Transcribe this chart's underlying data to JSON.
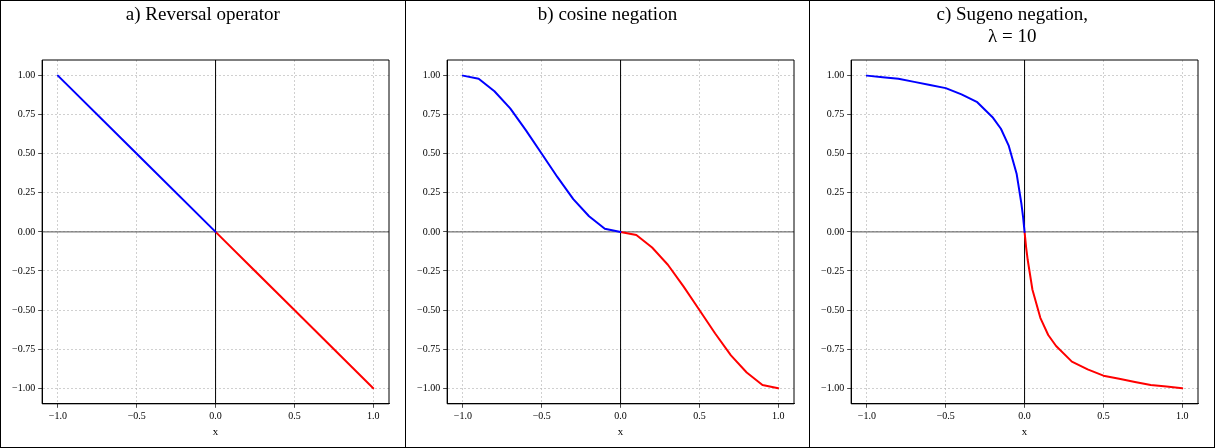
{
  "chart_data": [
    {
      "type": "line",
      "title": "a) Reversal operator",
      "xlabel": "x",
      "xlim": [
        -1.1,
        1.1
      ],
      "ylim": [
        -1.1,
        1.1
      ],
      "xticks": [
        {
          "value": -1,
          "label": "−1.0"
        },
        {
          "value": -0.5,
          "label": "−0.5"
        },
        {
          "value": 0,
          "label": "0.0"
        },
        {
          "value": 0.5,
          "label": "0.5"
        },
        {
          "value": 1,
          "label": "1.0"
        }
      ],
      "yticks": [
        {
          "value": -1,
          "label": "−1.00"
        },
        {
          "value": -0.75,
          "label": "−0.75"
        },
        {
          "value": -0.5,
          "label": "−0.50"
        },
        {
          "value": -0.25,
          "label": "−0.25"
        },
        {
          "value": 0,
          "label": "0.00"
        },
        {
          "value": 0.25,
          "label": "0.25"
        },
        {
          "value": 0.5,
          "label": "0.50"
        },
        {
          "value": 0.75,
          "label": "0.75"
        },
        {
          "value": 1,
          "label": "1.00"
        }
      ],
      "grid": true,
      "legend": false,
      "marker": "none",
      "line_style": "solid",
      "ref_lines": [
        {
          "axis": "x",
          "value": 0,
          "color": "#000000"
        },
        {
          "axis": "y",
          "value": 0,
          "color": "#555555"
        }
      ],
      "series": [
        {
          "color": "#0000ff",
          "x": [
            -1,
            -0.5,
            0
          ],
          "values": [
            1,
            0.5,
            0
          ]
        },
        {
          "color": "#ff0000",
          "x": [
            0,
            0.5,
            1
          ],
          "values": [
            0,
            -0.5,
            -1
          ]
        }
      ]
    },
    {
      "type": "line",
      "title": "b) cosine negation",
      "xlabel": "x",
      "xlim": [
        -1.1,
        1.1
      ],
      "ylim": [
        -1.1,
        1.1
      ],
      "xticks": [
        {
          "value": -1,
          "label": "−1.0"
        },
        {
          "value": -0.5,
          "label": "−0.5"
        },
        {
          "value": 0,
          "label": "0.0"
        },
        {
          "value": 0.5,
          "label": "0.5"
        },
        {
          "value": 1,
          "label": "1.0"
        }
      ],
      "yticks": [
        {
          "value": -1,
          "label": "−1.00"
        },
        {
          "value": -0.75,
          "label": "−0.75"
        },
        {
          "value": -0.5,
          "label": "−0.50"
        },
        {
          "value": -0.25,
          "label": "−0.25"
        },
        {
          "value": 0,
          "label": "0.00"
        },
        {
          "value": 0.25,
          "label": "0.25"
        },
        {
          "value": 0.5,
          "label": "0.50"
        },
        {
          "value": 0.75,
          "label": "0.75"
        },
        {
          "value": 1,
          "label": "1.00"
        }
      ],
      "grid": true,
      "legend": false,
      "marker": "none",
      "line_style": "solid",
      "ref_lines": [
        {
          "axis": "x",
          "value": 0,
          "color": "#000000"
        },
        {
          "axis": "y",
          "value": 0,
          "color": "#555555"
        }
      ],
      "series": [
        {
          "color": "#0000ff",
          "x": [
            -1,
            -0.9,
            -0.8,
            -0.7,
            -0.6,
            -0.5,
            -0.4,
            -0.3,
            -0.2,
            -0.1,
            0
          ],
          "values": [
            1,
            0.98,
            0.9,
            0.79,
            0.65,
            0.5,
            0.35,
            0.21,
            0.1,
            0.02,
            0
          ]
        },
        {
          "color": "#ff0000",
          "x": [
            0,
            0.1,
            0.2,
            0.3,
            0.4,
            0.5,
            0.6,
            0.7,
            0.8,
            0.9,
            1
          ],
          "values": [
            0,
            -0.02,
            -0.1,
            -0.21,
            -0.35,
            -0.5,
            -0.65,
            -0.79,
            -0.9,
            -0.98,
            -1
          ]
        }
      ]
    },
    {
      "type": "line",
      "title": "c) Sugeno negation,\nλ = 10",
      "xlabel": "x",
      "xlim": [
        -1.1,
        1.1
      ],
      "ylim": [
        -1.1,
        1.1
      ],
      "xticks": [
        {
          "value": -1,
          "label": "−1.0"
        },
        {
          "value": -0.5,
          "label": "−0.5"
        },
        {
          "value": 0,
          "label": "0.0"
        },
        {
          "value": 0.5,
          "label": "0.5"
        },
        {
          "value": 1,
          "label": "1.0"
        }
      ],
      "yticks": [
        {
          "value": -1,
          "label": "−1.00"
        },
        {
          "value": -0.75,
          "label": "−0.75"
        },
        {
          "value": -0.5,
          "label": "−0.50"
        },
        {
          "value": -0.25,
          "label": "−0.25"
        },
        {
          "value": 0,
          "label": "0.00"
        },
        {
          "value": 0.25,
          "label": "0.25"
        },
        {
          "value": 0.5,
          "label": "0.50"
        },
        {
          "value": 0.75,
          "label": "0.75"
        },
        {
          "value": 1,
          "label": "1.00"
        }
      ],
      "grid": true,
      "legend": false,
      "marker": "none",
      "line_style": "solid",
      "ref_lines": [
        {
          "axis": "x",
          "value": 0,
          "color": "#000000"
        },
        {
          "axis": "y",
          "value": 0,
          "color": "#555555"
        }
      ],
      "series": [
        {
          "color": "#0000ff",
          "x": [
            -1,
            -0.9,
            -0.8,
            -0.7,
            -0.6,
            -0.5,
            -0.4,
            -0.3,
            -0.2,
            -0.15,
            -0.1,
            -0.05,
            -0.02,
            -0.01,
            0
          ],
          "values": [
            1,
            0.99,
            0.98,
            0.96,
            0.94,
            0.92,
            0.88,
            0.83,
            0.73,
            0.66,
            0.55,
            0.37,
            0.18,
            0.1,
            0
          ]
        },
        {
          "color": "#ff0000",
          "x": [
            0,
            0.01,
            0.02,
            0.05,
            0.1,
            0.15,
            0.2,
            0.3,
            0.4,
            0.5,
            0.6,
            0.7,
            0.8,
            0.9,
            1
          ],
          "values": [
            0,
            -0.1,
            -0.18,
            -0.37,
            -0.55,
            -0.66,
            -0.73,
            -0.83,
            -0.88,
            -0.92,
            -0.94,
            -0.96,
            -0.98,
            -0.99,
            -1
          ]
        }
      ]
    }
  ]
}
